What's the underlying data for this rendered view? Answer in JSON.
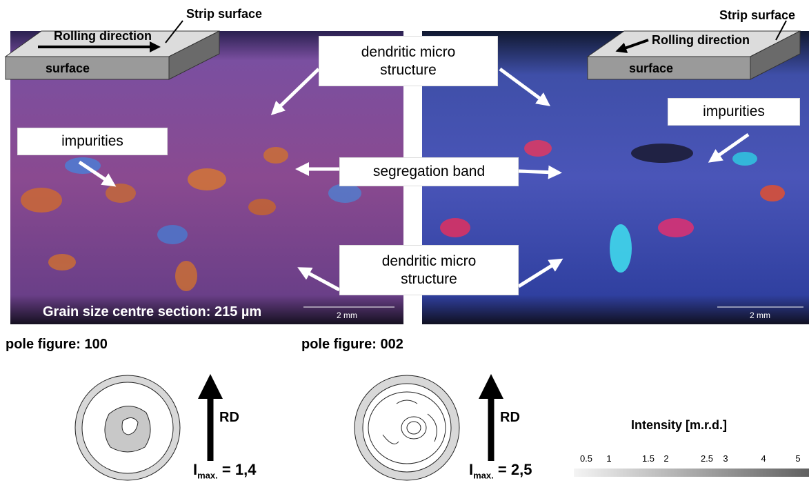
{
  "left_image": {
    "strip_surface": "Strip surface",
    "rolling_direction": "Rolling direction",
    "surface": "surface",
    "impurities": "impurities",
    "grain_size": "Grain size centre section: 215 µm",
    "scale_bar": "2 mm"
  },
  "right_image": {
    "strip_surface": "Strip surface",
    "rolling_direction": "Rolling direction",
    "surface": "surface",
    "impurities": "impurities",
    "scale_bar": "2 mm"
  },
  "center_labels": {
    "dendritic_top": "dendritic micro structure",
    "segregation_band": "segregation band",
    "dendritic_bottom": "dendritic micro structure"
  },
  "pole_figures": [
    {
      "title": "pole figure: 100",
      "rd": "RD",
      "i": "I",
      "sub": "max.",
      "value": "= 1,4"
    },
    {
      "title": "pole figure: 002",
      "rd": "RD",
      "i": "I",
      "sub": "max.",
      "value": "= 2,5"
    }
  ],
  "intensity": {
    "title": "Intensity [m.r.d.]",
    "ticks": [
      0.5,
      1,
      1.5,
      2,
      2.5,
      3,
      4,
      5
    ]
  }
}
